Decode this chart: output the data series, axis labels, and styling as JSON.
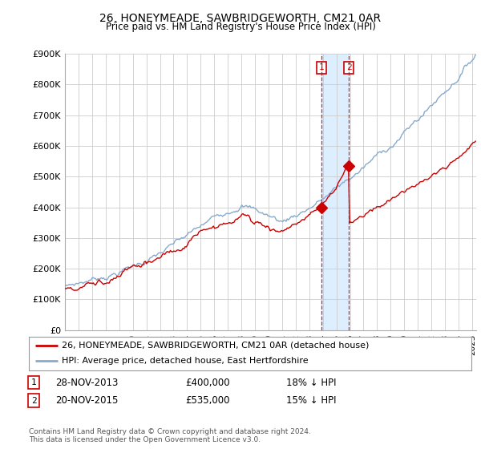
{
  "title": "26, HONEYMEADE, SAWBRIDGEWORTH, CM21 0AR",
  "subtitle": "Price paid vs. HM Land Registry's House Price Index (HPI)",
  "ylabel_ticks": [
    "£0",
    "£100K",
    "£200K",
    "£300K",
    "£400K",
    "£500K",
    "£600K",
    "£700K",
    "£800K",
    "£900K"
  ],
  "ylim": [
    0,
    900000
  ],
  "xlim_start": 1995.0,
  "xlim_end": 2025.3,
  "sale1_date": 2013.92,
  "sale1_price": 400000,
  "sale1_label": "1",
  "sale2_date": 2015.92,
  "sale2_price": 535000,
  "sale2_label": "2",
  "line1_color": "#cc0000",
  "line2_color": "#88aacc",
  "vline_color": "#cc0000",
  "shade_color": "#ddeeff",
  "marker_color": "#cc0000",
  "legend1": "26, HONEYMEADE, SAWBRIDGEWORTH, CM21 0AR (detached house)",
  "legend2": "HPI: Average price, detached house, East Hertfordshire",
  "footnote": "Contains HM Land Registry data © Crown copyright and database right 2024.\nThis data is licensed under the Open Government Licence v3.0.",
  "background_color": "#ffffff",
  "grid_color": "#cccccc"
}
